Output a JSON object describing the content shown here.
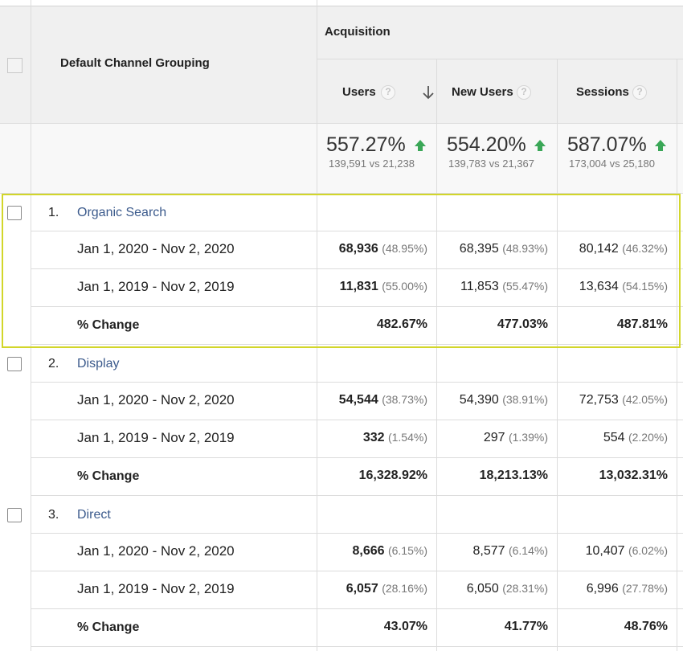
{
  "header": {
    "dimension_title": "Default Channel Grouping",
    "group_title": "Acquisition",
    "metrics": [
      {
        "label": "Users",
        "help": "?"
      },
      {
        "label": "New Users",
        "help": "?"
      },
      {
        "label": "Sessions",
        "help": "?"
      }
    ]
  },
  "totals": [
    {
      "pct": "557.27%",
      "sub": "139,591 vs 21,238"
    },
    {
      "pct": "554.20%",
      "sub": "139,783 vs 21,367"
    },
    {
      "pct": "587.07%",
      "sub": "173,004 vs 25,180"
    }
  ],
  "colors": {
    "highlight": "#d2d62a",
    "link": "#3b5a8c",
    "up_arrow": "#3aa757"
  },
  "groups": [
    {
      "num": "1.",
      "name": "Organic Search",
      "rows": [
        {
          "label": "Jan 1, 2020 - Nov 2, 2020",
          "users": {
            "val": "68,936",
            "pct": "(48.95%)"
          },
          "new_users": {
            "val": "68,395",
            "pct": "(48.93%)"
          },
          "sessions": {
            "val": "80,142",
            "pct": "(46.32%)"
          }
        },
        {
          "label": "Jan 1, 2019 - Nov 2, 2019",
          "users": {
            "val": "11,831",
            "pct": "(55.00%)"
          },
          "new_users": {
            "val": "11,853",
            "pct": "(55.47%)"
          },
          "sessions": {
            "val": "13,634",
            "pct": "(54.15%)"
          }
        },
        {
          "label": "% Change",
          "users": {
            "val": "482.67%",
            "pct": ""
          },
          "new_users": {
            "val": "477.03%",
            "pct": ""
          },
          "sessions": {
            "val": "487.81%",
            "pct": ""
          }
        }
      ]
    },
    {
      "num": "2.",
      "name": "Display",
      "rows": [
        {
          "label": "Jan 1, 2020 - Nov 2, 2020",
          "users": {
            "val": "54,544",
            "pct": "(38.73%)"
          },
          "new_users": {
            "val": "54,390",
            "pct": "(38.91%)"
          },
          "sessions": {
            "val": "72,753",
            "pct": "(42.05%)"
          }
        },
        {
          "label": "Jan 1, 2019 - Nov 2, 2019",
          "users": {
            "val": "332",
            "pct": "(1.54%)"
          },
          "new_users": {
            "val": "297",
            "pct": "(1.39%)"
          },
          "sessions": {
            "val": "554",
            "pct": "(2.20%)"
          }
        },
        {
          "label": "% Change",
          "users": {
            "val": "16,328.92%",
            "pct": ""
          },
          "new_users": {
            "val": "18,213.13%",
            "pct": ""
          },
          "sessions": {
            "val": "13,032.31%",
            "pct": ""
          }
        }
      ]
    },
    {
      "num": "3.",
      "name": "Direct",
      "rows": [
        {
          "label": "Jan 1, 2020 - Nov 2, 2020",
          "users": {
            "val": "8,666",
            "pct": "(6.15%)"
          },
          "new_users": {
            "val": "8,577",
            "pct": "(6.14%)"
          },
          "sessions": {
            "val": "10,407",
            "pct": "(6.02%)"
          }
        },
        {
          "label": "Jan 1, 2019 - Nov 2, 2019",
          "users": {
            "val": "6,057",
            "pct": "(28.16%)"
          },
          "new_users": {
            "val": "6,050",
            "pct": "(28.31%)"
          },
          "sessions": {
            "val": "6,996",
            "pct": "(27.78%)"
          }
        },
        {
          "label": "% Change",
          "users": {
            "val": "43.07%",
            "pct": ""
          },
          "new_users": {
            "val": "41.77%",
            "pct": ""
          },
          "sessions": {
            "val": "48.76%",
            "pct": ""
          }
        }
      ]
    }
  ]
}
